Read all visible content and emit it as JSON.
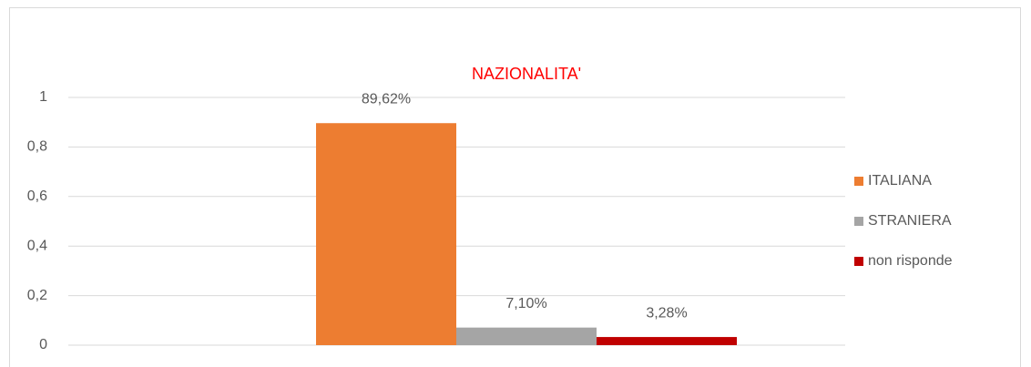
{
  "chart_data": {
    "type": "bar",
    "title": "NAZIONALITA'",
    "categories": [
      null
    ],
    "series": [
      {
        "name": "ITALIANA",
        "color": "#ed7d31",
        "values": [
          0.8962
        ],
        "value_labels": [
          "89,62%"
        ]
      },
      {
        "name": "STRANIERA",
        "color": "#a5a5a5",
        "values": [
          0.071
        ],
        "value_labels": [
          "7,10%"
        ]
      },
      {
        "name": "non risponde",
        "color": "#c00000",
        "values": [
          0.0328
        ],
        "value_labels": [
          "3,28%"
        ]
      }
    ],
    "ylim": [
      0,
      1
    ],
    "yticks": [
      0,
      {
        "value": 0.2,
        "label": "0,2"
      },
      {
        "value": 0.4,
        "label": "0,4"
      },
      {
        "value": 0.6,
        "label": "0,6"
      },
      {
        "value": 0.8,
        "label": "0,8"
      },
      1
    ],
    "grid": true,
    "legend": "right"
  }
}
